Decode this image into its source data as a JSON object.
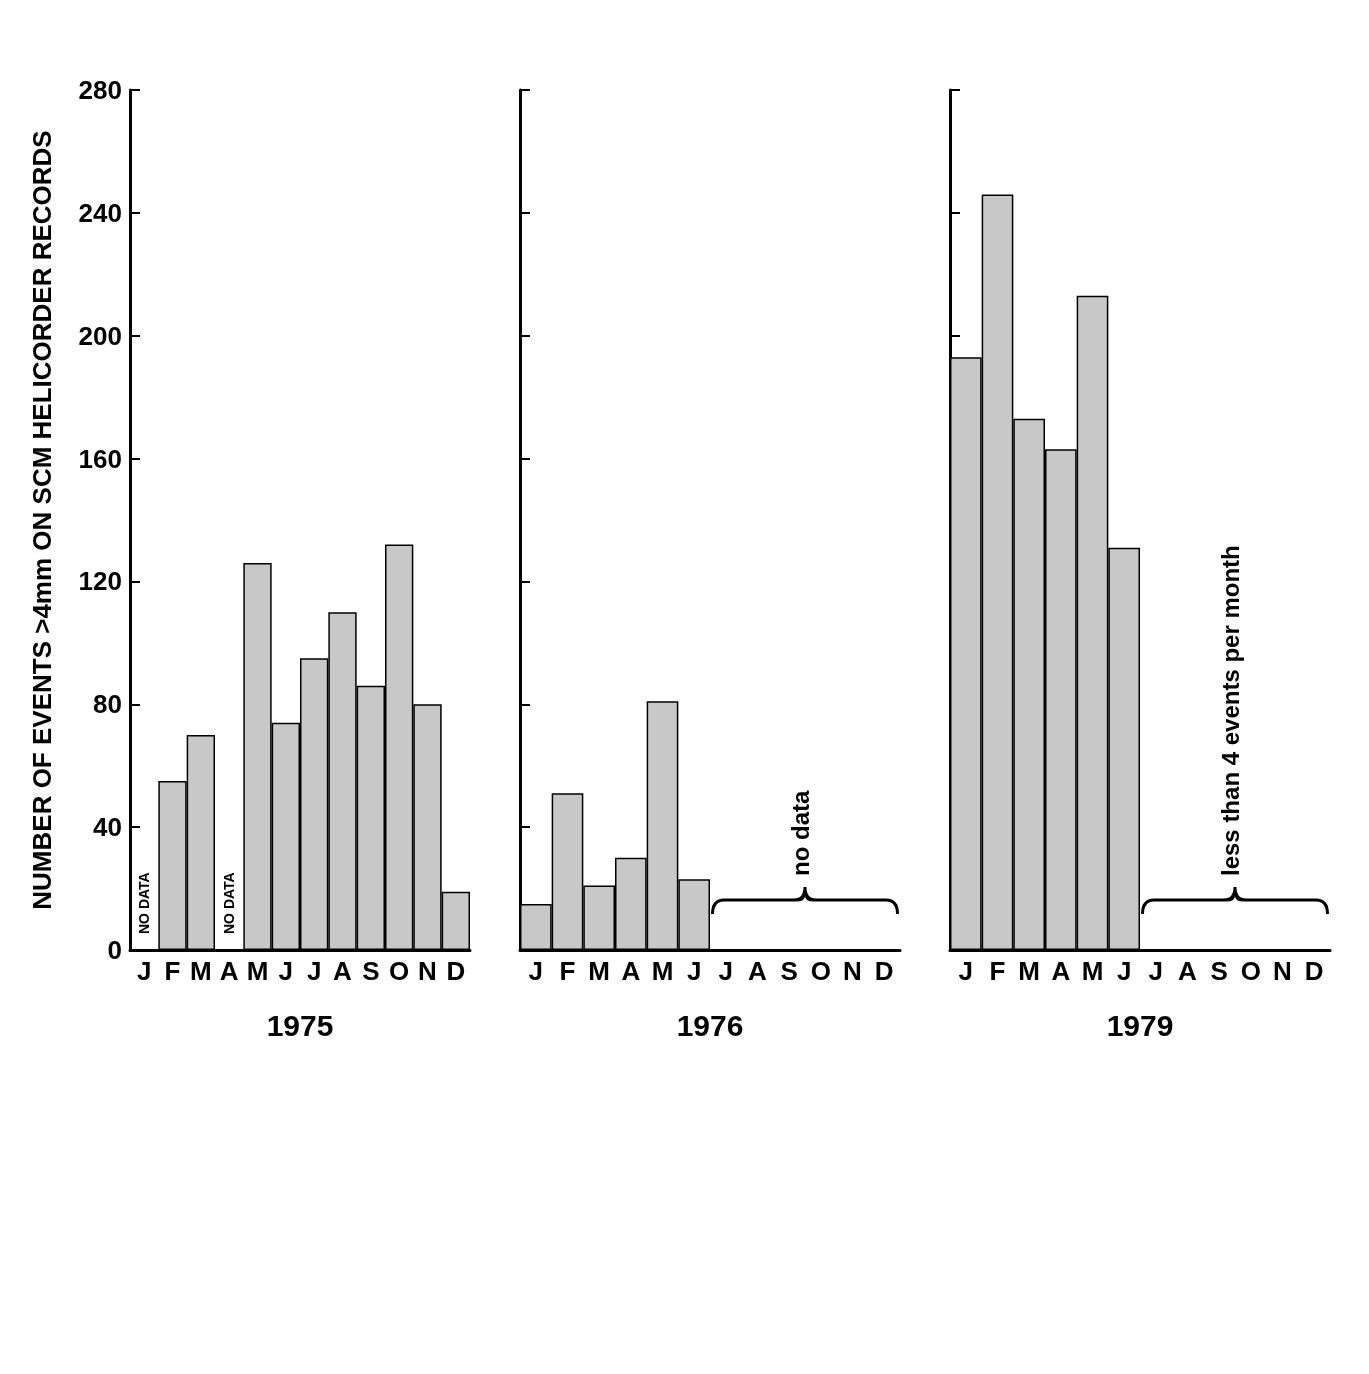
{
  "chart_data": [
    {
      "type": "bar",
      "categories": [
        "J",
        "F",
        "M",
        "A",
        "M",
        "J",
        "J",
        "A",
        "S",
        "O",
        "N",
        "D"
      ],
      "values": [
        null,
        55,
        70,
        null,
        126,
        74,
        95,
        110,
        86,
        132,
        80,
        19
      ],
      "value_labels": [
        "NO DATA",
        null,
        null,
        "NO DATA",
        null,
        null,
        null,
        null,
        null,
        null,
        null,
        null
      ],
      "color": "#c8c8c8",
      "xlabel": "1975",
      "ylabel": "NUMBER OF EVENTS >4mm ON SCM HELICORDER RECORDS",
      "ylim": [
        0,
        280
      ],
      "yticks": [
        0,
        40,
        80,
        120,
        160,
        200,
        240,
        280
      ]
    },
    {
      "type": "bar",
      "categories": [
        "J",
        "F",
        "M",
        "A",
        "M",
        "J",
        "J",
        "A",
        "S",
        "O",
        "N",
        "D"
      ],
      "values": [
        15,
        51,
        21,
        30,
        81,
        23,
        null,
        null,
        null,
        null,
        null,
        null
      ],
      "color": "#c8c8c8",
      "xlabel": "1976",
      "ylim": [
        0,
        280
      ],
      "yticks": [
        0,
        40,
        80,
        120,
        160,
        200,
        240,
        280
      ],
      "tick_labels": "x",
      "annotations": [
        "no data"
      ]
    },
    {
      "type": "bar",
      "categories": [
        "J",
        "F",
        "M",
        "A",
        "M",
        "J",
        "J",
        "A",
        "S",
        "O",
        "N",
        "D"
      ],
      "values": [
        193,
        246,
        173,
        163,
        213,
        131,
        null,
        null,
        null,
        null,
        null,
        null
      ],
      "color": "#c8c8c8",
      "xlabel": "1979",
      "ylim": [
        0,
        280
      ],
      "yticks": [
        0,
        40,
        80,
        120,
        160,
        200,
        240,
        280
      ],
      "tick_labels": "x",
      "annotations": [
        "less than 4 events per month"
      ]
    }
  ]
}
